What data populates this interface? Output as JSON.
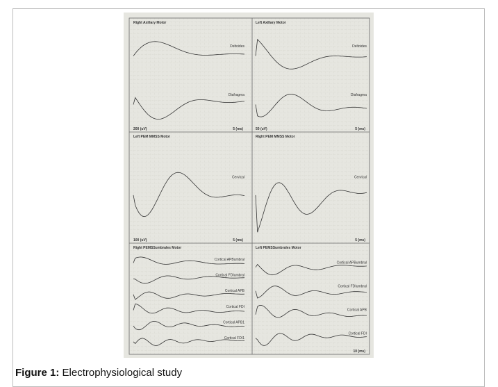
{
  "figure": {
    "panels": [
      {
        "title": "Right Axillary Motor",
        "traces": [
          "Deltoides",
          "Diafragma"
        ],
        "scale": [
          "200 (uV)",
          "5 (ms)"
        ]
      },
      {
        "title": "Left Axillary Motor",
        "traces": [
          "Deltoides",
          "Diafragma"
        ],
        "scale": [
          "50 (uV)",
          "5 (ms)"
        ]
      },
      {
        "title": "Left PEM MMSS Motor",
        "traces": [
          "Cervical"
        ],
        "scale": [
          "100 (uV)",
          "5 (ms)"
        ]
      },
      {
        "title": "Right PEM MMSS Motor",
        "traces": [
          "Cervical"
        ],
        "scale": [
          "5 (ms)"
        ]
      },
      {
        "title": "Right PEMSSumbrales Motor",
        "traces": [
          "Cortical APBumbral",
          "Cortical FDIumbral",
          "Cortical APB",
          "Cortical FDI",
          "Cortical APB1",
          "Cortical FDI1"
        ]
      },
      {
        "title": "Left PEMSSumbrales Motor",
        "traces": [
          "Cortical APBumbral",
          "Cortical FDIumbral",
          "Cortical APB",
          "Cortical FDI"
        ],
        "scale": [
          "10 (ms)"
        ]
      }
    ],
    "caption": {
      "label": "Figure 1:",
      "text": "Electrophysiological study"
    }
  }
}
